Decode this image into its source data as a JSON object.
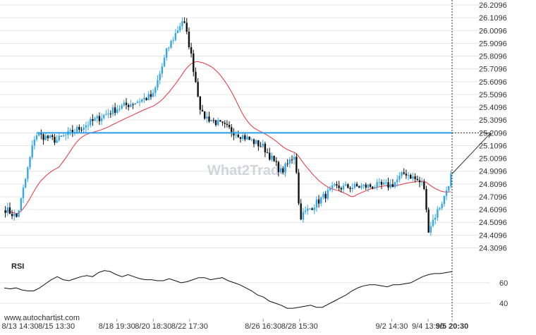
{
  "chart_data": [
    {
      "type": "candlestick",
      "title": "",
      "y_ticks": [
        "26.2096",
        "26.1096",
        "26.0096",
        "25.9096",
        "25.8096",
        "25.7096",
        "25.6096",
        "25.5096",
        "25.4096",
        "25.3096",
        "25.2096",
        "25.1096",
        "25.0096",
        "24.9096",
        "24.8096",
        "24.7096",
        "24.6096",
        "24.5096",
        "24.4096",
        "24.3096"
      ],
      "ylim": [
        24.27,
        26.23
      ],
      "x_ticks": [
        "8/13 14:30",
        "8/15 13:30",
        "8/18 19:30",
        "8/20 18:30",
        "8/22 17:30",
        "8/26 16:30",
        "8/28 15:30",
        "9/2 14:30",
        "9/4 13:30",
        "9/5 20:30"
      ],
      "x_range": [
        "8/12 18:00",
        "9/5 20:30"
      ],
      "current_time": "9/5 20:30",
      "overlays": {
        "moving_average_color": "#e8323c",
        "support_resistance_level": 25.2096,
        "level_color": "#2e9de8",
        "projection_target": 25.2096
      },
      "candle_colors": {
        "up": "#35a7e8",
        "down": "#111111"
      },
      "price_path_keypoints": [
        {
          "t": "8/12 18:00",
          "price": 24.62
        },
        {
          "t": "8/13 10:00",
          "price": 24.55
        },
        {
          "t": "8/13 14:30",
          "price": 24.65
        },
        {
          "t": "8/14 10:00",
          "price": 25.2
        },
        {
          "t": "8/15 13:30",
          "price": 25.15
        },
        {
          "t": "8/18 19:30",
          "price": 25.4
        },
        {
          "t": "8/20 18:30",
          "price": 25.5
        },
        {
          "t": "8/21 12:00",
          "price": 25.85
        },
        {
          "t": "8/22 09:00",
          "price": 26.1
        },
        {
          "t": "8/22 17:30",
          "price": 25.88
        },
        {
          "t": "8/23 09:00",
          "price": 25.35
        },
        {
          "t": "8/26 16:30",
          "price": 25.1
        },
        {
          "t": "8/27 16:00",
          "price": 24.9
        },
        {
          "t": "8/28 10:00",
          "price": 25.05
        },
        {
          "t": "8/28 15:30",
          "price": 24.55
        },
        {
          "t": "8/30 12:00",
          "price": 24.78
        },
        {
          "t": "9/2 14:30",
          "price": 24.8
        },
        {
          "t": "9/3 08:00",
          "price": 24.9
        },
        {
          "t": "9/4 08:00",
          "price": 24.8
        },
        {
          "t": "9/4 13:30",
          "price": 24.45
        },
        {
          "t": "9/5 10:00",
          "price": 24.7
        },
        {
          "t": "9/5 20:30",
          "price": 24.9
        }
      ]
    },
    {
      "type": "line",
      "name": "RSI",
      "y_ticks": [
        "60",
        "40"
      ],
      "ylim": [
        33,
        80
      ],
      "values": [
        55,
        54,
        55,
        53,
        52,
        52,
        55,
        59,
        63,
        66,
        63,
        62,
        64,
        66,
        67,
        66,
        70,
        72,
        71,
        68,
        66,
        68,
        66,
        64,
        63,
        63,
        62,
        62,
        64,
        62,
        60,
        61,
        63,
        65,
        65,
        63,
        64,
        65,
        62,
        60,
        58,
        55,
        52,
        48,
        46,
        42,
        40,
        38,
        35,
        35,
        36,
        37,
        38,
        36,
        36,
        39,
        42,
        45,
        48,
        52,
        55,
        57,
        58,
        58,
        57,
        56,
        58,
        58,
        59,
        60,
        63,
        66,
        68,
        69,
        69,
        70,
        71
      ]
    }
  ],
  "labels": {
    "rsi": "RSI",
    "watermark": "What2Trade",
    "footer": "www.autochartist.com"
  },
  "styles": {
    "grid_color": "#e6e6e6",
    "axis_color": "#999999",
    "text_color": "#333333"
  }
}
